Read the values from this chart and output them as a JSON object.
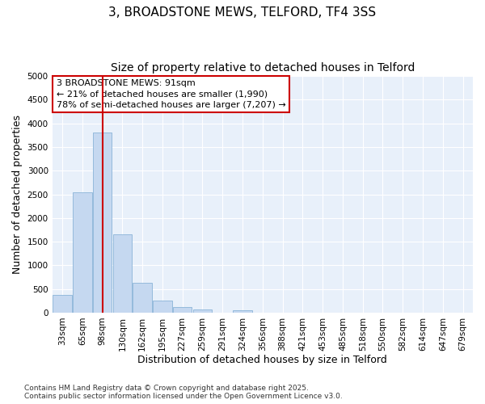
{
  "title_line1": "3, BROADSTONE MEWS, TELFORD, TF4 3SS",
  "title_line2": "Size of property relative to detached houses in Telford",
  "xlabel": "Distribution of detached houses by size in Telford",
  "ylabel": "Number of detached properties",
  "categories": [
    "33sqm",
    "65sqm",
    "98sqm",
    "130sqm",
    "162sqm",
    "195sqm",
    "227sqm",
    "259sqm",
    "291sqm",
    "324sqm",
    "356sqm",
    "388sqm",
    "421sqm",
    "453sqm",
    "485sqm",
    "518sqm",
    "550sqm",
    "582sqm",
    "614sqm",
    "647sqm",
    "679sqm"
  ],
  "values": [
    375,
    2550,
    3800,
    1650,
    625,
    250,
    120,
    70,
    0,
    50,
    0,
    0,
    0,
    0,
    0,
    0,
    0,
    0,
    0,
    0,
    0
  ],
  "bar_color": "#c5d8f0",
  "bar_edge_color": "#8ab4d8",
  "vline_color": "#cc0000",
  "vline_x": 2.0,
  "annotation_text": "3 BROADSTONE MEWS: 91sqm\n← 21% of detached houses are smaller (1,990)\n78% of semi-detached houses are larger (7,207) →",
  "annotation_box_edge_color": "#cc0000",
  "ylim_max": 5000,
  "yticks": [
    0,
    500,
    1000,
    1500,
    2000,
    2500,
    3000,
    3500,
    4000,
    4500,
    5000
  ],
  "plot_bg_color": "#e8f0fa",
  "fig_bg_color": "#ffffff",
  "grid_color": "#ffffff",
  "footer_line1": "Contains HM Land Registry data © Crown copyright and database right 2025.",
  "footer_line2": "Contains public sector information licensed under the Open Government Licence v3.0.",
  "title_fontsize": 11,
  "subtitle_fontsize": 10,
  "axis_label_fontsize": 9,
  "tick_fontsize": 7.5,
  "annotation_fontsize": 8,
  "footer_fontsize": 6.5
}
